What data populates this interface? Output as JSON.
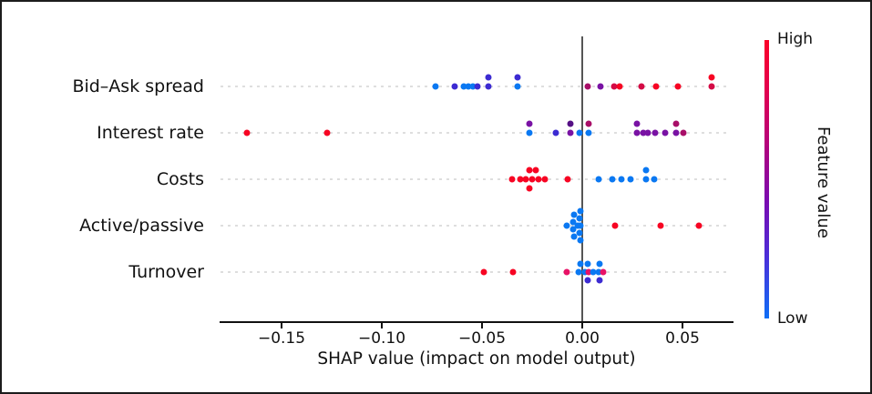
{
  "chart_data": {
    "type": "scatter",
    "subtype": "shap-beeswarm",
    "title": "",
    "xlabel": "SHAP value (impact on model output)",
    "xlim": [
      -0.18,
      0.0755
    ],
    "grid": "dotted-horizontal-per-row",
    "x_ticks": [
      {
        "label": "−0.15",
        "value": -0.15
      },
      {
        "label": "−0.10",
        "value": -0.1
      },
      {
        "label": "−0.05",
        "value": -0.05
      },
      {
        "label": "0.00",
        "value": 0.0
      },
      {
        "label": "0.05",
        "value": 0.05
      }
    ],
    "colorbar": {
      "high_label": "High",
      "low_label": "Low",
      "title": "Feature value",
      "top_color": "#fb0128",
      "bottom_color": "#0e6ef6"
    },
    "palette": {
      "b": "#0a78f2",
      "nb": "#3c2bd2",
      "pu": "#7912a4",
      "dpu": "#551085",
      "dm": "#a80e68",
      "mg": "#e81266",
      "cr": "#d40a45",
      "re": "#f70423"
    },
    "features": [
      {
        "name": "Bid–Ask spread",
        "points": [
          {
            "v": -0.0732,
            "dy": 0,
            "c": "b"
          },
          {
            "v": -0.0638,
            "dy": 0,
            "c": "nb"
          },
          {
            "v": -0.0591,
            "dy": 0,
            "c": "b"
          },
          {
            "v": -0.0568,
            "dy": 0,
            "c": "b"
          },
          {
            "v": -0.0545,
            "dy": 0,
            "c": "b"
          },
          {
            "v": -0.0523,
            "dy": 0,
            "c": "nb"
          },
          {
            "v": -0.047,
            "dy": -10,
            "c": "nb"
          },
          {
            "v": -0.047,
            "dy": 0,
            "c": "nb"
          },
          {
            "v": -0.0323,
            "dy": -10,
            "c": "nb"
          },
          {
            "v": -0.0323,
            "dy": 0,
            "c": "b"
          },
          {
            "v": 0.0029,
            "dy": 0,
            "c": "dm"
          },
          {
            "v": 0.009,
            "dy": 0,
            "c": "pu"
          },
          {
            "v": 0.0158,
            "dy": 0,
            "c": "cr"
          },
          {
            "v": 0.0185,
            "dy": 0,
            "c": "re"
          },
          {
            "v": 0.0294,
            "dy": 0,
            "c": "cr"
          },
          {
            "v": 0.037,
            "dy": 0,
            "c": "re"
          },
          {
            "v": 0.0476,
            "dy": 0,
            "c": "re"
          },
          {
            "v": 0.0645,
            "dy": -10,
            "c": "re"
          },
          {
            "v": 0.0645,
            "dy": 0,
            "c": "cr"
          }
        ]
      },
      {
        "name": "Interest rate",
        "points": [
          {
            "v": -0.1671,
            "dy": 0,
            "c": "re"
          },
          {
            "v": -0.1274,
            "dy": 0,
            "c": "re"
          },
          {
            "v": -0.0262,
            "dy": -10,
            "c": "pu"
          },
          {
            "v": -0.0262,
            "dy": 0,
            "c": "b"
          },
          {
            "v": -0.013,
            "dy": 0,
            "c": "nb"
          },
          {
            "v": -0.0059,
            "dy": -10,
            "c": "dpu"
          },
          {
            "v": -0.0059,
            "dy": 0,
            "c": "pu"
          },
          {
            "v": -0.0014,
            "dy": 0,
            "c": "b"
          },
          {
            "v": 0.0033,
            "dy": -10,
            "c": "dm"
          },
          {
            "v": 0.0033,
            "dy": 0,
            "c": "b"
          },
          {
            "v": 0.0271,
            "dy": -10,
            "c": "pu"
          },
          {
            "v": 0.0271,
            "dy": 0,
            "c": "pu"
          },
          {
            "v": 0.0305,
            "dy": 0,
            "c": "pu"
          },
          {
            "v": 0.0329,
            "dy": 0,
            "c": "pu"
          },
          {
            "v": 0.0362,
            "dy": 0,
            "c": "pu"
          },
          {
            "v": 0.0415,
            "dy": 0,
            "c": "pu"
          },
          {
            "v": 0.0468,
            "dy": -10,
            "c": "dm"
          },
          {
            "v": 0.0468,
            "dy": 0,
            "c": "pu"
          },
          {
            "v": 0.0506,
            "dy": 0,
            "c": "dm"
          }
        ]
      },
      {
        "name": "Costs",
        "points": [
          {
            "v": -0.0351,
            "dy": 0,
            "c": "re"
          },
          {
            "v": -0.031,
            "dy": 0,
            "c": "re"
          },
          {
            "v": -0.028,
            "dy": 0,
            "c": "re"
          },
          {
            "v": -0.0265,
            "dy": -10,
            "c": "re"
          },
          {
            "v": -0.0265,
            "dy": 10,
            "c": "re"
          },
          {
            "v": -0.025,
            "dy": 0,
            "c": "re"
          },
          {
            "v": -0.023,
            "dy": -10,
            "c": "re"
          },
          {
            "v": -0.022,
            "dy": 0,
            "c": "re"
          },
          {
            "v": -0.0185,
            "dy": 0,
            "c": "re"
          },
          {
            "v": -0.0074,
            "dy": 0,
            "c": "re"
          },
          {
            "v": 0.0082,
            "dy": 0,
            "c": "b"
          },
          {
            "v": 0.015,
            "dy": 0,
            "c": "b"
          },
          {
            "v": 0.0195,
            "dy": 0,
            "c": "b"
          },
          {
            "v": 0.0241,
            "dy": 0,
            "c": "b"
          },
          {
            "v": 0.032,
            "dy": -10,
            "c": "b"
          },
          {
            "v": 0.032,
            "dy": 0,
            "c": "b"
          },
          {
            "v": 0.0359,
            "dy": 0,
            "c": "b"
          }
        ]
      },
      {
        "name": "Active/passive",
        "points": [
          {
            "v": -0.0009,
            "dy": -16,
            "c": "b"
          },
          {
            "v": -0.0014,
            "dy": -8,
            "c": "b"
          },
          {
            "v": -0.0009,
            "dy": 0,
            "c": "b"
          },
          {
            "v": -0.0014,
            "dy": 8,
            "c": "b"
          },
          {
            "v": -0.0009,
            "dy": 16,
            "c": "b"
          },
          {
            "v": -0.0041,
            "dy": -12,
            "c": "b"
          },
          {
            "v": -0.0045,
            "dy": -4,
            "c": "b"
          },
          {
            "v": -0.0045,
            "dy": 4,
            "c": "b"
          },
          {
            "v": -0.0041,
            "dy": 12,
            "c": "b"
          },
          {
            "v": -0.0077,
            "dy": 0,
            "c": "b"
          },
          {
            "v": -0.0023,
            "dy": 0,
            "c": "b"
          },
          {
            "v": 0.0165,
            "dy": 0,
            "c": "re"
          },
          {
            "v": 0.039,
            "dy": 0,
            "c": "re"
          },
          {
            "v": 0.0582,
            "dy": 0,
            "c": "re"
          }
        ]
      },
      {
        "name": "Turnover",
        "points": [
          {
            "v": -0.049,
            "dy": 0,
            "c": "re"
          },
          {
            "v": -0.0345,
            "dy": 0,
            "c": "re"
          },
          {
            "v": -0.0077,
            "dy": 0,
            "c": "mg"
          },
          {
            "v": -0.0017,
            "dy": 0,
            "c": "b"
          },
          {
            "v": -0.0009,
            "dy": -9,
            "c": "b"
          },
          {
            "v": 0.0014,
            "dy": 0,
            "c": "b"
          },
          {
            "v": 0.0029,
            "dy": -9,
            "c": "b"
          },
          {
            "v": 0.0029,
            "dy": 9,
            "c": "nb"
          },
          {
            "v": 0.0032,
            "dy": 0,
            "c": "mg"
          },
          {
            "v": 0.0055,
            "dy": 0,
            "c": "b"
          },
          {
            "v": 0.0082,
            "dy": 0,
            "c": "b"
          },
          {
            "v": 0.0085,
            "dy": -9,
            "c": "b"
          },
          {
            "v": 0.0085,
            "dy": 9,
            "c": "nb"
          },
          {
            "v": 0.0105,
            "dy": 0,
            "c": "mg"
          }
        ]
      }
    ]
  }
}
